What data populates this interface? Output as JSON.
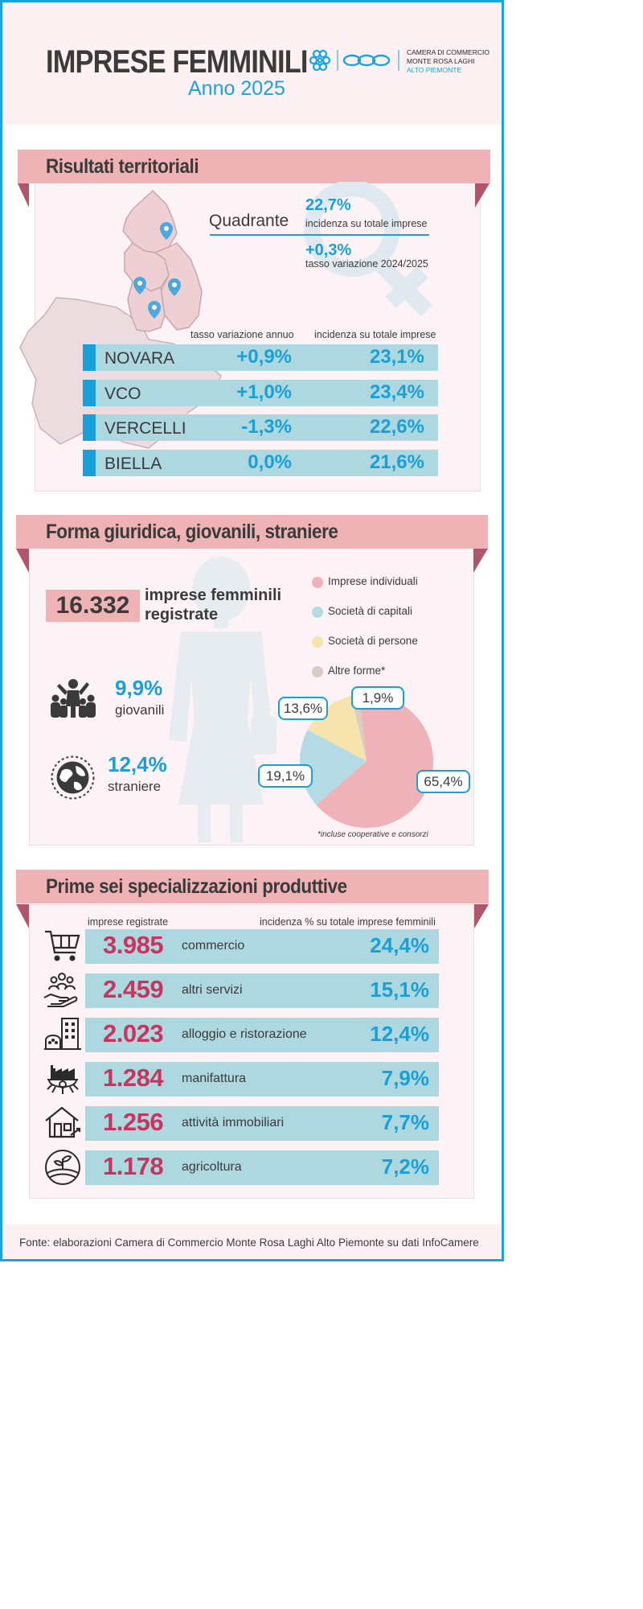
{
  "header": {
    "title": "IMPRESE FEMMINILI",
    "subtitle": "Anno 2025",
    "logo_lines": [
      "CAMERA DI COMMERCIO",
      "MONTE ROSA LAGHI",
      "ALTO PIEMONTE"
    ]
  },
  "colors": {
    "accent_blue": "#1a9fd9",
    "banner_pink": "#f0b3b5",
    "number_red": "#c9345e",
    "row_teal": "#aed8e0"
  },
  "territorial": {
    "heading": "Risultati territoriali",
    "quadrante_label": "Quadrante",
    "incidence_value": "22,7%",
    "incidence_label": "incidenza su totale imprese",
    "variation_value": "+0,3%",
    "variation_label": "tasso variazione 2024/2025",
    "col_variation": "tasso variazione annuo",
    "col_incidence": "incidenza su totale imprese",
    "regions": [
      {
        "name": "NOVARA",
        "variation": "+0,9%",
        "incidence": "23,1%"
      },
      {
        "name": "VCO",
        "variation": "+1,0%",
        "incidence": "23,4%"
      },
      {
        "name": "VERCELLI",
        "variation": "-1,3%",
        "incidence": "22,6%"
      },
      {
        "name": "BIELLA",
        "variation": "0,0%",
        "incidence": "21,6%"
      }
    ]
  },
  "legal_form": {
    "heading": "Forma giuridica, giovanili, straniere",
    "total_value": "16.332",
    "total_label_1": "imprese femminili",
    "total_label_2": "registrate",
    "youth_value": "9,9%",
    "youth_label": "giovanili",
    "foreign_value": "12,4%",
    "foreign_label": "straniere",
    "legend": [
      {
        "label": "Imprese individuali",
        "color": "#eeb2b8"
      },
      {
        "label": "Società di capitali",
        "color": "#b4dbe5"
      },
      {
        "label": "Società di persone",
        "color": "#f7e3ac"
      },
      {
        "label": "Altre forme*",
        "color": "#d9cdc3"
      }
    ],
    "footnote": "*incluse cooperative e consorzi"
  },
  "chart_data": {
    "type": "pie",
    "slices": [
      {
        "label": "Imprese individuali",
        "value": 65.4,
        "display": "65,4%",
        "color": "#eeb2b8"
      },
      {
        "label": "Società di capitali",
        "value": 19.1,
        "display": "19,1%",
        "color": "#b4dbe5"
      },
      {
        "label": "Società di persone",
        "value": 13.6,
        "display": "13,6%",
        "color": "#f7e3ac"
      },
      {
        "label": "Altre forme*",
        "value": 1.9,
        "display": "1,9%",
        "color": "#d9cdc3"
      }
    ]
  },
  "specializations": {
    "heading": "Prime sei specializzazioni produttive",
    "col_registered": "imprese registrate",
    "col_incidence": "incidenza % su totale imprese femminili",
    "items": [
      {
        "icon": "shopping-cart-icon",
        "count": "3.985",
        "label": "commercio",
        "pct": "24,4%"
      },
      {
        "icon": "hand-people-icon",
        "count": "2.459",
        "label": "altri servizi",
        "pct": "15,1%"
      },
      {
        "icon": "hotel-icon",
        "count": "2.023",
        "label": "alloggio e ristorazione",
        "pct": "12,4%"
      },
      {
        "icon": "factory-gear-icon",
        "count": "1.284",
        "label": "manifattura",
        "pct": "7,9%"
      },
      {
        "icon": "house-icon",
        "count": "1.256",
        "label": "attività immobiliari",
        "pct": "7,7%"
      },
      {
        "icon": "sprout-field-icon",
        "count": "1.178",
        "label": "agricoltura",
        "pct": "7,2%"
      }
    ]
  },
  "footer": {
    "text": "Fonte: elaborazioni Camera di Commercio Monte Rosa Laghi Alto Piemonte su dati InfoCamere"
  }
}
